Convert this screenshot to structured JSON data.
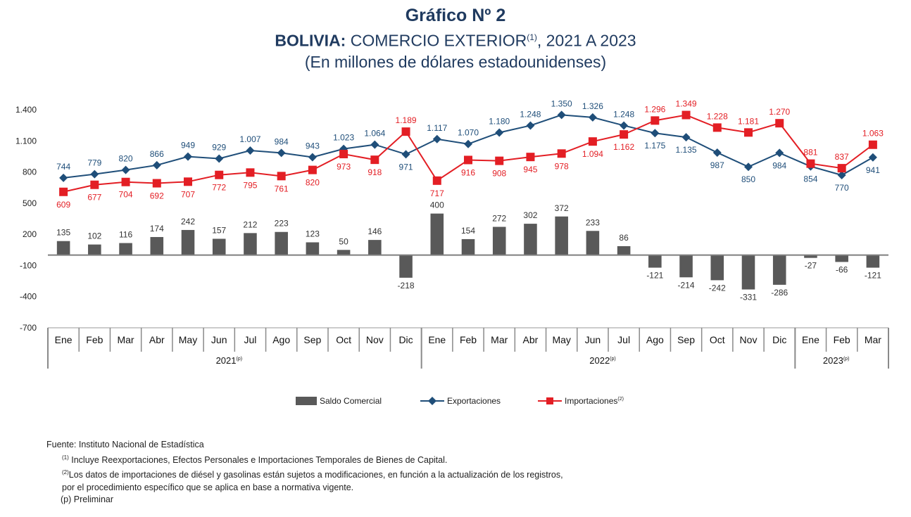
{
  "title": {
    "line1": "Gráfico Nº 2",
    "line2_bold": "BOLIVIA:",
    "line2_rest": " COMERCIO EXTERIOR",
    "line2_sup": "(1)",
    "line2_end": ", 2021 A 2023",
    "line3": "(En millones de dólares estadounidenses)"
  },
  "legend": {
    "saldo": "Saldo Comercial",
    "export": "Exportaciones",
    "import": "Importaciones",
    "import_sup": "(2)"
  },
  "notes": {
    "source": "Fuente: Instituto Nacional de Estadística",
    "n1_sup": "(1)",
    "n1": " Incluye Reexportaciones, Efectos Personales e  Importaciones Temporales de Bienes de Capital.",
    "n2_sup": "(2)",
    "n2": "Los datos de importaciones de diésel y gasolinas están sujetos a modificaciones, en función a la actualización de los registros,",
    "n3": "por el procedimiento específico que se aplica en base a normativa vigente.",
    "n4": "(p) Preliminar"
  },
  "colors": {
    "bar": "#595959",
    "export": "#1f4e79",
    "import": "#e31e24",
    "title": "#1f3a5f"
  },
  "chart_data": {
    "type": "bar+line",
    "categories": [
      "Ene",
      "Feb",
      "Mar",
      "Abr",
      "May",
      "Jun",
      "Jul",
      "Ago",
      "Sep",
      "Oct",
      "Nov",
      "Dic",
      "Ene",
      "Feb",
      "Mar",
      "Abr",
      "May",
      "Jun",
      "Jul",
      "Ago",
      "Sep",
      "Oct",
      "Nov",
      "Dic",
      "Ene",
      "Feb",
      "Mar"
    ],
    "groups": [
      {
        "label": "2021",
        "sup": "(p)",
        "count": 12
      },
      {
        "label": "2022",
        "sup": "(p)",
        "count": 12
      },
      {
        "label": "2023",
        "sup": "(p)",
        "count": 3
      }
    ],
    "ylim": [
      -700,
      1400
    ],
    "yticks": [
      1400,
      1100,
      800,
      500,
      200,
      -100,
      -400,
      -700
    ],
    "ytick_labels": [
      "1.400",
      "1.100",
      "800",
      "500",
      "200",
      "-100",
      "-400",
      "-700"
    ],
    "series": [
      {
        "name": "Saldo Comercial",
        "type": "bar",
        "values": [
          135,
          102,
          116,
          174,
          242,
          157,
          212,
          223,
          123,
          50,
          146,
          -218,
          400,
          154,
          272,
          302,
          372,
          233,
          86,
          -121,
          -214,
          -242,
          -331,
          -286,
          -27,
          -66,
          -121
        ],
        "labels": [
          "135",
          "102",
          "116",
          "174",
          "242",
          "157",
          "212",
          "223",
          "123",
          "50",
          "146",
          "-218",
          "400",
          "154",
          "272",
          "302",
          "372",
          "233",
          "86",
          "-121",
          "-214",
          "-242",
          "-331",
          "-286",
          "-27",
          "-66",
          "-121"
        ]
      },
      {
        "name": "Exportaciones",
        "type": "line",
        "marker": "diamond",
        "values": [
          744,
          779,
          820,
          866,
          949,
          929,
          1007,
          984,
          943,
          1023,
          1064,
          971,
          1117,
          1070,
          1180,
          1248,
          1350,
          1326,
          1248,
          1175,
          1135,
          987,
          850,
          984,
          854,
          770,
          941
        ],
        "labels": [
          "744",
          "779",
          "820",
          "866",
          "949",
          "929",
          "1.007",
          "984",
          "943",
          "1.023",
          "1.064",
          "971",
          "1.117",
          "1.070",
          "1.180",
          "1.248",
          "1.350",
          "1.326",
          "1.248",
          "1.175",
          "1.135",
          "987",
          "850",
          "984",
          "854",
          "770",
          "941"
        ]
      },
      {
        "name": "Importaciones",
        "type": "line",
        "marker": "square",
        "values": [
          609,
          677,
          704,
          692,
          707,
          772,
          795,
          761,
          820,
          973,
          918,
          1189,
          717,
          916,
          908,
          945,
          978,
          1094,
          1162,
          1296,
          1349,
          1228,
          1181,
          1270,
          881,
          837,
          1063
        ],
        "labels": [
          "609",
          "677",
          "704",
          "692",
          "707",
          "772",
          "795",
          "761",
          "820",
          "973",
          "918",
          "1.189",
          "717",
          "916",
          "908",
          "945",
          "978",
          "1.094",
          "1.162",
          "1.296",
          "1.349",
          "1.228",
          "1.181",
          "1.270",
          "881",
          "837",
          "1.063"
        ]
      }
    ]
  }
}
